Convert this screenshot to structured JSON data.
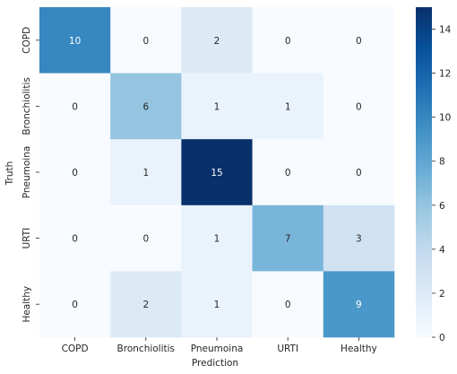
{
  "chart_data": {
    "type": "heatmap",
    "title": "",
    "xlabel": "Prediction",
    "ylabel": "Truth",
    "x_categories": [
      "COPD",
      "Bronchiolitis",
      "Pneumoina",
      "URTI",
      "Healthy"
    ],
    "y_categories": [
      "COPD",
      "Bronchiolitis",
      "Pneumoina",
      "URTI",
      "Healthy"
    ],
    "values": [
      [
        10,
        0,
        2,
        0,
        0
      ],
      [
        0,
        6,
        1,
        1,
        0
      ],
      [
        0,
        1,
        15,
        0,
        0
      ],
      [
        0,
        0,
        1,
        7,
        3
      ],
      [
        0,
        2,
        1,
        0,
        9
      ]
    ],
    "colorbar": {
      "min": 0,
      "max": 15,
      "ticks": [
        "0",
        "2",
        "4",
        "6",
        "8",
        "10",
        "12",
        "14"
      ],
      "colormap": "Blues"
    }
  }
}
